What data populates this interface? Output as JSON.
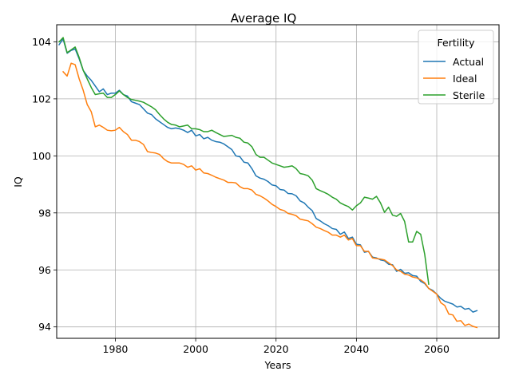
{
  "chart_data": {
    "type": "line",
    "title": "Average IQ",
    "xlabel": "Years",
    "ylabel": "IQ",
    "xlim": [
      1965.4,
      2075.5
    ],
    "ylim": [
      93.6,
      104.6
    ],
    "xticks": [
      1980,
      2000,
      2020,
      2040,
      2060
    ],
    "yticks": [
      94,
      96,
      98,
      100,
      102,
      104
    ],
    "grid": true,
    "legend": {
      "title": "Fertility",
      "location": "upper right"
    },
    "series": [
      {
        "name": "Actual",
        "color": "#1f77b4",
        "points": [
          [
            1966,
            103.9
          ],
          [
            1967,
            104.1
          ],
          [
            1968,
            103.6
          ],
          [
            1969,
            103.7
          ],
          [
            1970,
            103.75
          ],
          [
            1971,
            103.4
          ],
          [
            1972,
            103.0
          ],
          [
            1973,
            102.8
          ],
          [
            1974,
            102.65
          ],
          [
            1975,
            102.45
          ],
          [
            1976,
            102.25
          ],
          [
            1977,
            102.35
          ],
          [
            1978,
            102.15
          ],
          [
            1979,
            102.2
          ],
          [
            1980,
            102.2
          ],
          [
            1981,
            102.3
          ],
          [
            1982,
            102.15
          ],
          [
            1983,
            102.1
          ],
          [
            1984,
            101.9
          ],
          [
            1985,
            101.85
          ],
          [
            1986,
            101.8
          ],
          [
            1987,
            101.65
          ],
          [
            1988,
            101.5
          ],
          [
            1989,
            101.45
          ],
          [
            1990,
            101.3
          ],
          [
            1991,
            101.2
          ],
          [
            1992,
            101.1
          ],
          [
            1993,
            101.0
          ],
          [
            1994,
            100.95
          ],
          [
            1995,
            100.98
          ],
          [
            1996,
            100.95
          ],
          [
            1997,
            100.9
          ],
          [
            1998,
            100.82
          ],
          [
            1999,
            100.9
          ],
          [
            2000,
            100.7
          ],
          [
            2001,
            100.75
          ],
          [
            2002,
            100.6
          ],
          [
            2003,
            100.65
          ],
          [
            2004,
            100.55
          ],
          [
            2005,
            100.5
          ],
          [
            2006,
            100.48
          ],
          [
            2007,
            100.42
          ],
          [
            2008,
            100.32
          ],
          [
            2009,
            100.22
          ],
          [
            2010,
            100.0
          ],
          [
            2011,
            99.97
          ],
          [
            2012,
            99.78
          ],
          [
            2013,
            99.75
          ],
          [
            2014,
            99.55
          ],
          [
            2015,
            99.3
          ],
          [
            2016,
            99.22
          ],
          [
            2017,
            99.18
          ],
          [
            2018,
            99.1
          ],
          [
            2019,
            98.98
          ],
          [
            2020,
            98.95
          ],
          [
            2021,
            98.82
          ],
          [
            2022,
            98.8
          ],
          [
            2023,
            98.68
          ],
          [
            2024,
            98.67
          ],
          [
            2025,
            98.6
          ],
          [
            2026,
            98.42
          ],
          [
            2027,
            98.35
          ],
          [
            2028,
            98.2
          ],
          [
            2029,
            98.08
          ],
          [
            2030,
            97.8
          ],
          [
            2031,
            97.72
          ],
          [
            2032,
            97.62
          ],
          [
            2033,
            97.55
          ],
          [
            2034,
            97.45
          ],
          [
            2035,
            97.42
          ],
          [
            2036,
            97.25
          ],
          [
            2037,
            97.33
          ],
          [
            2038,
            97.1
          ],
          [
            2039,
            97.15
          ],
          [
            2040,
            96.9
          ],
          [
            2041,
            96.88
          ],
          [
            2042,
            96.62
          ],
          [
            2043,
            96.65
          ],
          [
            2044,
            96.45
          ],
          [
            2045,
            96.42
          ],
          [
            2046,
            96.35
          ],
          [
            2047,
            96.32
          ],
          [
            2048,
            96.2
          ],
          [
            2049,
            96.18
          ],
          [
            2050,
            95.95
          ],
          [
            2051,
            96.02
          ],
          [
            2052,
            95.88
          ],
          [
            2053,
            95.9
          ],
          [
            2054,
            95.8
          ],
          [
            2055,
            95.78
          ],
          [
            2056,
            95.6
          ],
          [
            2057,
            95.52
          ],
          [
            2058,
            95.35
          ],
          [
            2059,
            95.28
          ],
          [
            2060,
            95.15
          ],
          [
            2061,
            95.0
          ],
          [
            2062,
            94.9
          ],
          [
            2063,
            94.85
          ],
          [
            2064,
            94.8
          ],
          [
            2065,
            94.7
          ],
          [
            2066,
            94.72
          ],
          [
            2067,
            94.62
          ],
          [
            2068,
            94.65
          ],
          [
            2069,
            94.52
          ],
          [
            2070,
            94.57
          ]
        ]
      },
      {
        "name": "Ideal",
        "color": "#ff7f0e",
        "points": [
          [
            1967,
            102.95
          ],
          [
            1968,
            102.8
          ],
          [
            1969,
            103.25
          ],
          [
            1970,
            103.2
          ],
          [
            1971,
            102.7
          ],
          [
            1972,
            102.3
          ],
          [
            1973,
            101.8
          ],
          [
            1974,
            101.55
          ],
          [
            1975,
            101.02
          ],
          [
            1976,
            101.08
          ],
          [
            1977,
            101.0
          ],
          [
            1978,
            100.9
          ],
          [
            1979,
            100.88
          ],
          [
            1980,
            100.9
          ],
          [
            1981,
            101.0
          ],
          [
            1982,
            100.85
          ],
          [
            1983,
            100.75
          ],
          [
            1984,
            100.55
          ],
          [
            1985,
            100.55
          ],
          [
            1986,
            100.5
          ],
          [
            1987,
            100.4
          ],
          [
            1988,
            100.15
          ],
          [
            1989,
            100.12
          ],
          [
            1990,
            100.1
          ],
          [
            1991,
            100.05
          ],
          [
            1992,
            99.9
          ],
          [
            1993,
            99.8
          ],
          [
            1994,
            99.75
          ],
          [
            1995,
            99.75
          ],
          [
            1996,
            99.75
          ],
          [
            1997,
            99.7
          ],
          [
            1998,
            99.6
          ],
          [
            1999,
            99.65
          ],
          [
            2000,
            99.5
          ],
          [
            2001,
            99.55
          ],
          [
            2002,
            99.4
          ],
          [
            2003,
            99.38
          ],
          [
            2004,
            99.32
          ],
          [
            2005,
            99.25
          ],
          [
            2006,
            99.2
          ],
          [
            2007,
            99.15
          ],
          [
            2008,
            99.07
          ],
          [
            2009,
            99.07
          ],
          [
            2010,
            99.05
          ],
          [
            2011,
            98.92
          ],
          [
            2012,
            98.85
          ],
          [
            2013,
            98.85
          ],
          [
            2014,
            98.8
          ],
          [
            2015,
            98.65
          ],
          [
            2016,
            98.6
          ],
          [
            2017,
            98.52
          ],
          [
            2018,
            98.42
          ],
          [
            2019,
            98.3
          ],
          [
            2020,
            98.22
          ],
          [
            2021,
            98.12
          ],
          [
            2022,
            98.08
          ],
          [
            2023,
            97.98
          ],
          [
            2024,
            97.95
          ],
          [
            2025,
            97.9
          ],
          [
            2026,
            97.78
          ],
          [
            2027,
            97.75
          ],
          [
            2028,
            97.72
          ],
          [
            2029,
            97.62
          ],
          [
            2030,
            97.5
          ],
          [
            2031,
            97.45
          ],
          [
            2032,
            97.38
          ],
          [
            2033,
            97.32
          ],
          [
            2034,
            97.22
          ],
          [
            2035,
            97.22
          ],
          [
            2036,
            97.15
          ],
          [
            2037,
            97.22
          ],
          [
            2038,
            97.05
          ],
          [
            2039,
            97.1
          ],
          [
            2040,
            96.85
          ],
          [
            2041,
            96.85
          ],
          [
            2042,
            96.65
          ],
          [
            2043,
            96.65
          ],
          [
            2044,
            96.42
          ],
          [
            2045,
            96.4
          ],
          [
            2046,
            96.38
          ],
          [
            2047,
            96.35
          ],
          [
            2048,
            96.25
          ],
          [
            2049,
            96.15
          ],
          [
            2050,
            96.0
          ],
          [
            2051,
            95.95
          ],
          [
            2052,
            95.85
          ],
          [
            2053,
            95.82
          ],
          [
            2054,
            95.75
          ],
          [
            2055,
            95.72
          ],
          [
            2056,
            95.65
          ],
          [
            2057,
            95.55
          ],
          [
            2058,
            95.35
          ],
          [
            2059,
            95.25
          ],
          [
            2060,
            95.15
          ],
          [
            2061,
            94.85
          ],
          [
            2062,
            94.75
          ],
          [
            2063,
            94.45
          ],
          [
            2064,
            94.42
          ],
          [
            2065,
            94.2
          ],
          [
            2066,
            94.22
          ],
          [
            2067,
            94.05
          ],
          [
            2068,
            94.1
          ],
          [
            2069,
            94.02
          ],
          [
            2070,
            93.98
          ]
        ]
      },
      {
        "name": "Sterile",
        "color": "#2ca02c",
        "points": [
          [
            1966,
            104.0
          ],
          [
            1967,
            104.15
          ],
          [
            1968,
            103.62
          ],
          [
            1969,
            103.72
          ],
          [
            1970,
            103.82
          ],
          [
            1971,
            103.45
          ],
          [
            1972,
            103.0
          ],
          [
            1973,
            102.7
          ],
          [
            1974,
            102.4
          ],
          [
            1975,
            102.15
          ],
          [
            1976,
            102.18
          ],
          [
            1977,
            102.2
          ],
          [
            1978,
            102.05
          ],
          [
            1979,
            102.05
          ],
          [
            1980,
            102.15
          ],
          [
            1981,
            102.28
          ],
          [
            1982,
            102.15
          ],
          [
            1983,
            102.05
          ],
          [
            1984,
            101.98
          ],
          [
            1985,
            101.95
          ],
          [
            1986,
            101.92
          ],
          [
            1987,
            101.88
          ],
          [
            1988,
            101.8
          ],
          [
            1989,
            101.72
          ],
          [
            1990,
            101.62
          ],
          [
            1991,
            101.45
          ],
          [
            1992,
            101.3
          ],
          [
            1993,
            101.18
          ],
          [
            1994,
            101.1
          ],
          [
            1995,
            101.08
          ],
          [
            1996,
            101.02
          ],
          [
            1997,
            101.05
          ],
          [
            1998,
            101.08
          ],
          [
            1999,
            100.95
          ],
          [
            2000,
            100.95
          ],
          [
            2001,
            100.92
          ],
          [
            2002,
            100.85
          ],
          [
            2003,
            100.85
          ],
          [
            2004,
            100.9
          ],
          [
            2005,
            100.82
          ],
          [
            2006,
            100.75
          ],
          [
            2007,
            100.68
          ],
          [
            2008,
            100.7
          ],
          [
            2009,
            100.72
          ],
          [
            2010,
            100.65
          ],
          [
            2011,
            100.62
          ],
          [
            2012,
            100.48
          ],
          [
            2013,
            100.45
          ],
          [
            2014,
            100.32
          ],
          [
            2015,
            100.05
          ],
          [
            2016,
            99.95
          ],
          [
            2017,
            99.95
          ],
          [
            2018,
            99.85
          ],
          [
            2019,
            99.75
          ],
          [
            2020,
            99.7
          ],
          [
            2021,
            99.65
          ],
          [
            2022,
            99.6
          ],
          [
            2023,
            99.62
          ],
          [
            2024,
            99.65
          ],
          [
            2025,
            99.55
          ],
          [
            2026,
            99.38
          ],
          [
            2027,
            99.35
          ],
          [
            2028,
            99.3
          ],
          [
            2029,
            99.15
          ],
          [
            2030,
            98.85
          ],
          [
            2031,
            98.78
          ],
          [
            2032,
            98.72
          ],
          [
            2033,
            98.65
          ],
          [
            2034,
            98.55
          ],
          [
            2035,
            98.48
          ],
          [
            2036,
            98.35
          ],
          [
            2037,
            98.28
          ],
          [
            2038,
            98.22
          ],
          [
            2039,
            98.1
          ],
          [
            2040,
            98.25
          ],
          [
            2041,
            98.35
          ],
          [
            2042,
            98.55
          ],
          [
            2043,
            98.52
          ],
          [
            2044,
            98.48
          ],
          [
            2045,
            98.58
          ],
          [
            2046,
            98.35
          ],
          [
            2047,
            98.02
          ],
          [
            2048,
            98.2
          ],
          [
            2049,
            97.92
          ],
          [
            2050,
            97.88
          ],
          [
            2051,
            97.98
          ],
          [
            2052,
            97.7
          ],
          [
            2053,
            96.98
          ],
          [
            2054,
            96.98
          ],
          [
            2055,
            97.35
          ],
          [
            2056,
            97.25
          ],
          [
            2057,
            96.55
          ],
          [
            2058,
            95.5
          ]
        ]
      }
    ]
  }
}
